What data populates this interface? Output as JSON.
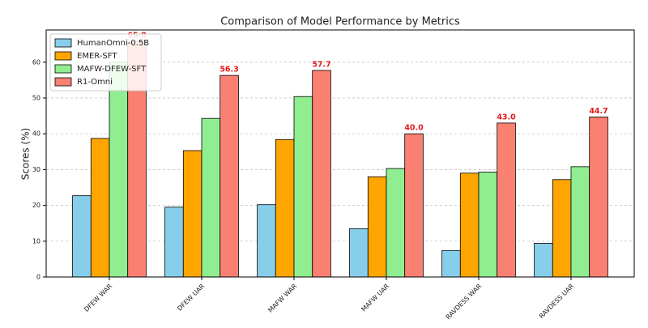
{
  "chart_data": {
    "type": "bar",
    "title": "Comparison of Model Performance by Metrics",
    "y_label": "Scores (%)",
    "categories": [
      "DFEW WAR",
      "DFEW UAR",
      "MAFW WAR",
      "MAFW UAR",
      "RAVDESS WAR",
      "RAVDESS UAR"
    ],
    "series": [
      {
        "name": "HumanOmni-0.5B",
        "color": "#87ceeb",
        "values": [
          22.7,
          19.5,
          20.2,
          13.5,
          7.4,
          9.4
        ]
      },
      {
        "name": "EMER-SFT",
        "color": "#ffa500",
        "values": [
          38.7,
          35.3,
          38.4,
          28.0,
          29.0,
          27.2
        ]
      },
      {
        "name": "MAFW-DFEW-SFT",
        "color": "#90ee90",
        "values": [
          60.0,
          44.3,
          50.4,
          30.3,
          29.3,
          30.8
        ]
      },
      {
        "name": "R1-Omni",
        "color": "#fa8072",
        "values": [
          65.8,
          56.3,
          57.7,
          40.0,
          43.0,
          44.7
        ],
        "value_labels": [
          "65.8",
          "56.3",
          "57.7",
          "40.0",
          "43.0",
          "44.7"
        ]
      }
    ],
    "ylim": [
      0,
      69
    ],
    "yticks": [
      0,
      10,
      20,
      30,
      40,
      50,
      60
    ],
    "grid": true,
    "legend": "upper-left"
  }
}
